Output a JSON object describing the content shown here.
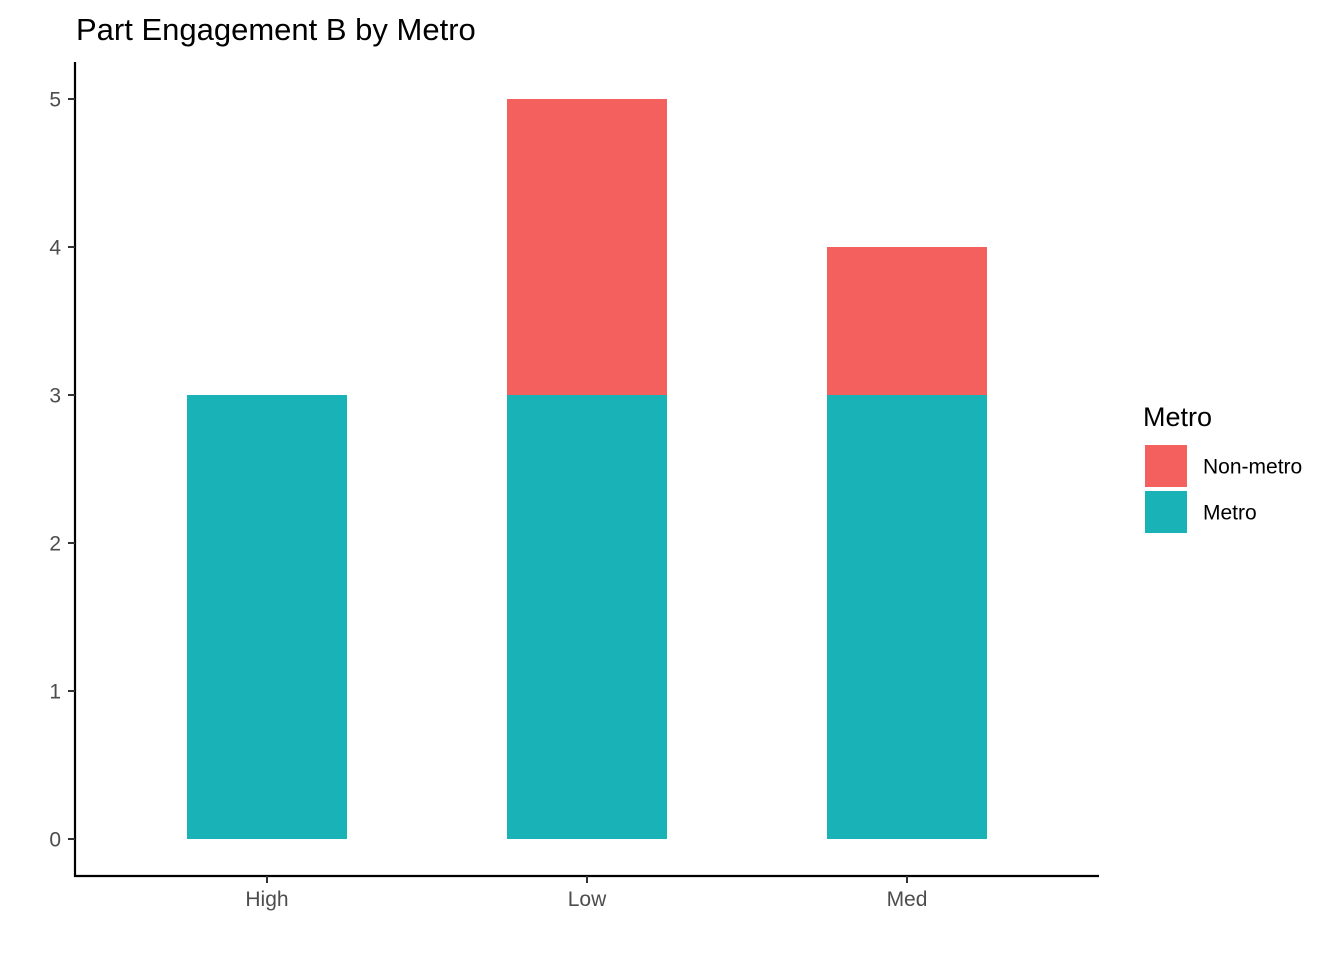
{
  "chart_data": {
    "type": "bar",
    "stacked": true,
    "title": "Part Engagement B by Metro",
    "xlabel": "",
    "ylabel": "",
    "categories": [
      "High",
      "Low",
      "Med"
    ],
    "series": [
      {
        "name": "Non-metro",
        "values": [
          0,
          2,
          1
        ],
        "color": "#F3605E"
      },
      {
        "name": "Metro",
        "values": [
          3,
          3,
          3
        ],
        "color": "#19B3B7"
      }
    ],
    "ylim": [
      -0.25,
      5.25
    ],
    "yticks": [
      0,
      1,
      2,
      3,
      4,
      5
    ],
    "grid": false,
    "legend": {
      "title": "Metro",
      "placement": "right"
    }
  }
}
